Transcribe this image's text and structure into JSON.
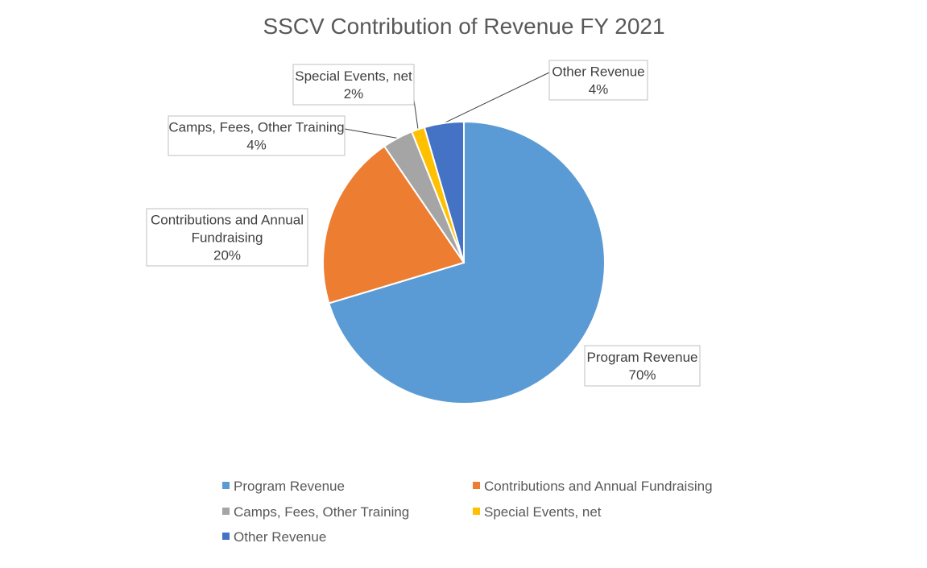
{
  "chart_data": {
    "type": "pie",
    "title": "SSCV Contribution of Revenue FY 2021",
    "slices": [
      {
        "name": "Program Revenue",
        "value": 70,
        "label": "70%",
        "color": "#5B9BD5"
      },
      {
        "name": "Contributions and Annual Fundraising",
        "value": 20,
        "label": "20%",
        "color": "#ED7D31"
      },
      {
        "name": "Camps, Fees, Other Training",
        "value": 3.5,
        "label": "4%",
        "color": "#A5A5A5"
      },
      {
        "name": "Special Events, net",
        "value": 1.5,
        "label": "2%",
        "color": "#FFC000"
      },
      {
        "name": "Other Revenue",
        "value": 4.5,
        "label": "4%",
        "color": "#4472C4"
      }
    ],
    "legend_position": "bottom",
    "data_labels": "category name and percentage, outside with leader lines"
  }
}
